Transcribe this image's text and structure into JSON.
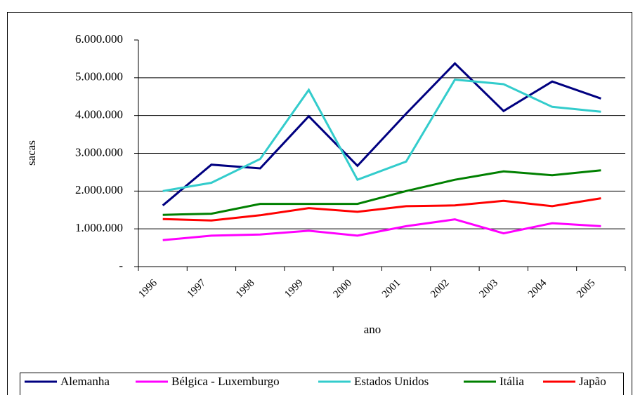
{
  "chart_data": {
    "type": "line",
    "x_label": "ano",
    "y_label": "sacas",
    "categories": [
      "1996",
      "1997",
      "1998",
      "1999",
      "2000",
      "2001",
      "2002",
      "2003",
      "2004",
      "2005"
    ],
    "series": [
      {
        "name": "Alemanha",
        "color": "#000080",
        "values": [
          1620000,
          2700000,
          2600000,
          3980000,
          2670000,
          4050000,
          5380000,
          4120000,
          4900000,
          4450000
        ]
      },
      {
        "name": "Bélgica - Luxemburgo",
        "color": "#ff00ff",
        "values": [
          700000,
          820000,
          850000,
          950000,
          820000,
          1070000,
          1250000,
          880000,
          1150000,
          1070000
        ]
      },
      {
        "name": "Estados Unidos",
        "color": "#33cccc",
        "values": [
          2000000,
          2220000,
          2850000,
          4680000,
          2300000,
          2780000,
          4950000,
          4830000,
          4230000,
          4100000
        ]
      },
      {
        "name": "Itália",
        "color": "#008000",
        "values": [
          1370000,
          1400000,
          1660000,
          1660000,
          1660000,
          2000000,
          2300000,
          2520000,
          2420000,
          2550000
        ]
      },
      {
        "name": "Japão",
        "color": "#ff0000",
        "values": [
          1260000,
          1220000,
          1360000,
          1550000,
          1450000,
          1600000,
          1620000,
          1740000,
          1600000,
          1810000
        ]
      }
    ],
    "ylim": [
      0,
      6000000
    ],
    "yticks": [
      {
        "value": 0,
        "label": "-"
      },
      {
        "value": 1000000,
        "label": "1.000.000"
      },
      {
        "value": 2000000,
        "label": "2.000.000"
      },
      {
        "value": 3000000,
        "label": "3.000.000"
      },
      {
        "value": 4000000,
        "label": "4.000.000"
      },
      {
        "value": 5000000,
        "label": "5.000.000"
      },
      {
        "value": 6000000,
        "label": "6.000.000"
      }
    ],
    "grid": true,
    "legend": "bottom"
  }
}
